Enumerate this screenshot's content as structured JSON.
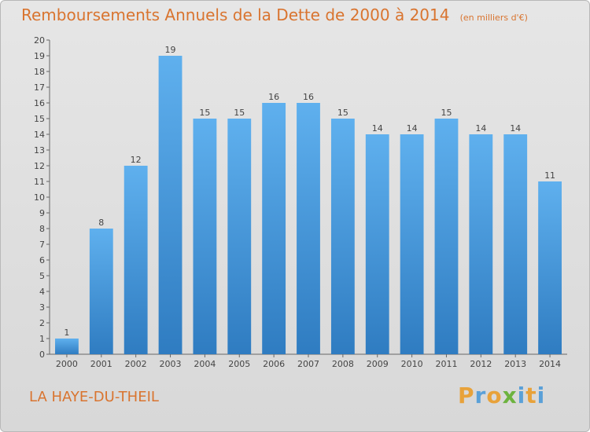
{
  "title": "Remboursements Annuels de la Dette de 2000 à 2014",
  "unit": "(en milliers d'€)",
  "place": "LA HAYE-DU-THEIL",
  "logo": {
    "text": "Proxiti",
    "letters": [
      "P",
      "r",
      "o",
      "x",
      "i",
      "t",
      "i"
    ],
    "colors": [
      "#e8a23a",
      "#5aa0d8",
      "#e8a23a",
      "#6db33f",
      "#5aa0d8",
      "#e8a23a",
      "#5aa0d8"
    ]
  },
  "colors": {
    "title": "#d9742f",
    "bar_top": "#5fb0ee",
    "bar_bottom": "#2f7cc1"
  },
  "chart_data": {
    "type": "bar",
    "title": "Remboursements Annuels de la Dette de 2000 à 2014",
    "categories": [
      "2000",
      "2001",
      "2002",
      "2003",
      "2004",
      "2005",
      "2006",
      "2007",
      "2008",
      "2009",
      "2010",
      "2011",
      "2012",
      "2013",
      "2014"
    ],
    "values": [
      1,
      8,
      12,
      19,
      15,
      15,
      16,
      16,
      15,
      14,
      14,
      15,
      14,
      14,
      11
    ],
    "ylim": [
      0,
      20
    ],
    "yticks": [
      0,
      1,
      2,
      3,
      4,
      5,
      6,
      7,
      8,
      9,
      10,
      11,
      12,
      13,
      14,
      15,
      16,
      17,
      18,
      19,
      20
    ],
    "grid": false,
    "xlabel": "",
    "ylabel": ""
  }
}
